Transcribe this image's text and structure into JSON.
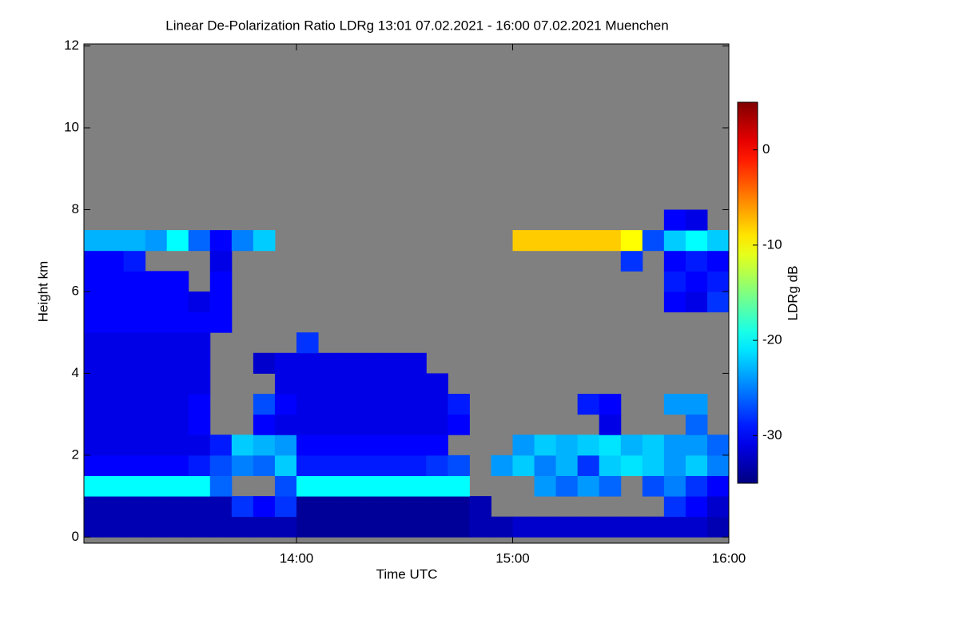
{
  "chart_data": {
    "type": "heatmap",
    "title": "Linear De-Polarization Ratio LDRg   13:01 07.02.2021 - 16:00 07.02.2021 Muenchen",
    "x_label": "Time UTC",
    "y_label": "Height km",
    "colorbar_label": "LDRg dB",
    "xlim": [
      13.0167,
      16.0
    ],
    "ylim": [
      -0.15,
      12.05
    ],
    "xticks": [
      {
        "value": 14,
        "label": "14:00"
      },
      {
        "value": 15,
        "label": "15:00"
      },
      {
        "value": 16,
        "label": "16:00"
      }
    ],
    "yticks": [
      0,
      2,
      4,
      6,
      8,
      10,
      12
    ],
    "clim": [
      -35,
      5
    ],
    "cticks": [
      -30,
      -20,
      -10,
      0
    ],
    "colormap": "jet",
    "background": "#808080",
    "x_bins": [
      13.0167,
      13.1,
      13.2,
      13.3,
      13.4,
      13.5,
      13.6,
      13.7,
      13.8,
      13.9,
      14.0,
      14.1,
      14.2,
      14.3,
      14.4,
      14.5,
      14.6,
      14.7,
      14.8,
      14.9,
      15.0,
      15.1,
      15.2,
      15.3,
      15.4,
      15.5,
      15.6,
      15.7,
      15.8,
      15.9,
      16.0
    ],
    "y_bins": [
      0,
      0.5,
      1,
      1.5,
      2,
      2.5,
      3,
      3.5,
      4,
      4.5,
      5,
      5.5,
      6,
      6.5,
      7,
      7.5,
      8
    ],
    "z": [
      [
        -33,
        -33,
        -33,
        -33,
        -33,
        -33,
        -33,
        -33,
        -33,
        -33,
        -34,
        -34,
        -34,
        -34,
        -34,
        -34,
        -34,
        -34,
        -33,
        -33,
        -32,
        -32,
        -32,
        -32,
        -32,
        -32,
        -32,
        -32,
        -32,
        -33
      ],
      [
        -33,
        -33,
        -33,
        -33,
        -33,
        -33,
        -33,
        -28,
        -30,
        -28,
        -34,
        -34,
        -34,
        -34,
        -34,
        -34,
        -34,
        -34,
        -33,
        null,
        null,
        null,
        null,
        null,
        null,
        null,
        null,
        -28,
        -30,
        -32
      ],
      [
        -20,
        -20,
        -20,
        -20,
        -20,
        -20,
        -26,
        null,
        null,
        -27,
        -20,
        -20,
        -20,
        -20,
        -20,
        -20,
        -20,
        -20,
        null,
        null,
        null,
        -24,
        -26,
        -24,
        -26,
        null,
        -27,
        -25,
        -28,
        -30
      ],
      [
        -30,
        -30,
        -30,
        -30,
        -30,
        -29,
        -27,
        -25,
        -26,
        -22,
        -29,
        -29,
        -29,
        -29,
        -29,
        -29,
        -28,
        -27,
        null,
        -24,
        -22,
        -25,
        -23,
        -28,
        -22,
        -21,
        -22,
        -24,
        -22,
        -25
      ],
      [
        -31,
        -31,
        -31,
        -31,
        -31,
        -31,
        -29,
        -22,
        -23,
        -24,
        -30,
        -30,
        -30,
        -30,
        -30,
        -30,
        -30,
        null,
        null,
        null,
        -24,
        -22,
        -23,
        -22,
        -21,
        -23,
        -22,
        -24,
        -24,
        -26
      ],
      [
        -31,
        -31,
        -31,
        -31,
        -31,
        -30,
        null,
        null,
        -30,
        -31,
        -31,
        -31,
        -31,
        -31,
        -31,
        -31,
        -31,
        -30,
        null,
        null,
        null,
        null,
        null,
        null,
        -31,
        null,
        null,
        null,
        -26,
        null
      ],
      [
        -31,
        -31,
        -31,
        -31,
        -31,
        -30,
        null,
        null,
        -27,
        -30,
        -31,
        -31,
        -31,
        -31,
        -31,
        -31,
        -31,
        -29,
        null,
        null,
        null,
        null,
        null,
        -29,
        -30,
        null,
        null,
        -24,
        -24,
        null
      ],
      [
        -31,
        -31,
        -31,
        -31,
        -31,
        -31,
        null,
        null,
        null,
        -31,
        -31,
        -31,
        -31,
        -31,
        -31,
        -31,
        -31,
        null,
        null,
        null,
        null,
        null,
        null,
        null,
        null,
        null,
        null,
        null,
        null,
        null
      ],
      [
        -31,
        -31,
        -31,
        -31,
        -31,
        -31,
        null,
        null,
        -32,
        -31,
        -31,
        -31,
        -31,
        -31,
        -31,
        -31,
        null,
        null,
        null,
        null,
        null,
        null,
        null,
        null,
        null,
        null,
        null,
        null,
        null,
        null
      ],
      [
        -31,
        -31,
        -31,
        -31,
        -31,
        -31,
        null,
        null,
        null,
        null,
        -28,
        null,
        null,
        null,
        null,
        null,
        null,
        null,
        null,
        null,
        null,
        null,
        null,
        null,
        null,
        null,
        null,
        null,
        null,
        null
      ],
      [
        -30,
        -30,
        -30,
        -30,
        -30,
        -30,
        -30,
        null,
        null,
        null,
        null,
        null,
        null,
        null,
        null,
        null,
        null,
        null,
        null,
        null,
        null,
        null,
        null,
        null,
        null,
        null,
        null,
        null,
        null,
        null
      ],
      [
        -30,
        -30,
        -30,
        -30,
        -30,
        -31,
        -30,
        null,
        null,
        null,
        null,
        null,
        null,
        null,
        null,
        null,
        null,
        null,
        null,
        null,
        null,
        null,
        null,
        null,
        null,
        null,
        null,
        -30,
        -31,
        -28
      ],
      [
        -30,
        -30,
        -30,
        -30,
        -30,
        null,
        -30,
        null,
        null,
        null,
        null,
        null,
        null,
        null,
        null,
        null,
        null,
        null,
        null,
        null,
        null,
        null,
        null,
        null,
        null,
        null,
        null,
        -29,
        -30,
        -29
      ],
      [
        -30,
        -30,
        -29,
        null,
        null,
        null,
        -31,
        null,
        null,
        null,
        null,
        null,
        null,
        null,
        null,
        null,
        null,
        null,
        null,
        null,
        null,
        null,
        null,
        null,
        null,
        -28,
        null,
        -30,
        -29,
        -30
      ],
      [
        -23,
        -23,
        -23,
        -24,
        -20,
        -26,
        -30,
        -25,
        -22,
        null,
        null,
        null,
        null,
        null,
        null,
        null,
        null,
        null,
        null,
        null,
        -8,
        -8,
        -8,
        -8,
        -8,
        -10,
        -27,
        -22,
        -20,
        -22
      ],
      [
        null,
        null,
        null,
        null,
        null,
        null,
        null,
        null,
        null,
        null,
        null,
        null,
        null,
        null,
        null,
        null,
        null,
        null,
        null,
        null,
        null,
        null,
        null,
        null,
        null,
        null,
        null,
        -30,
        -31,
        null
      ]
    ]
  }
}
